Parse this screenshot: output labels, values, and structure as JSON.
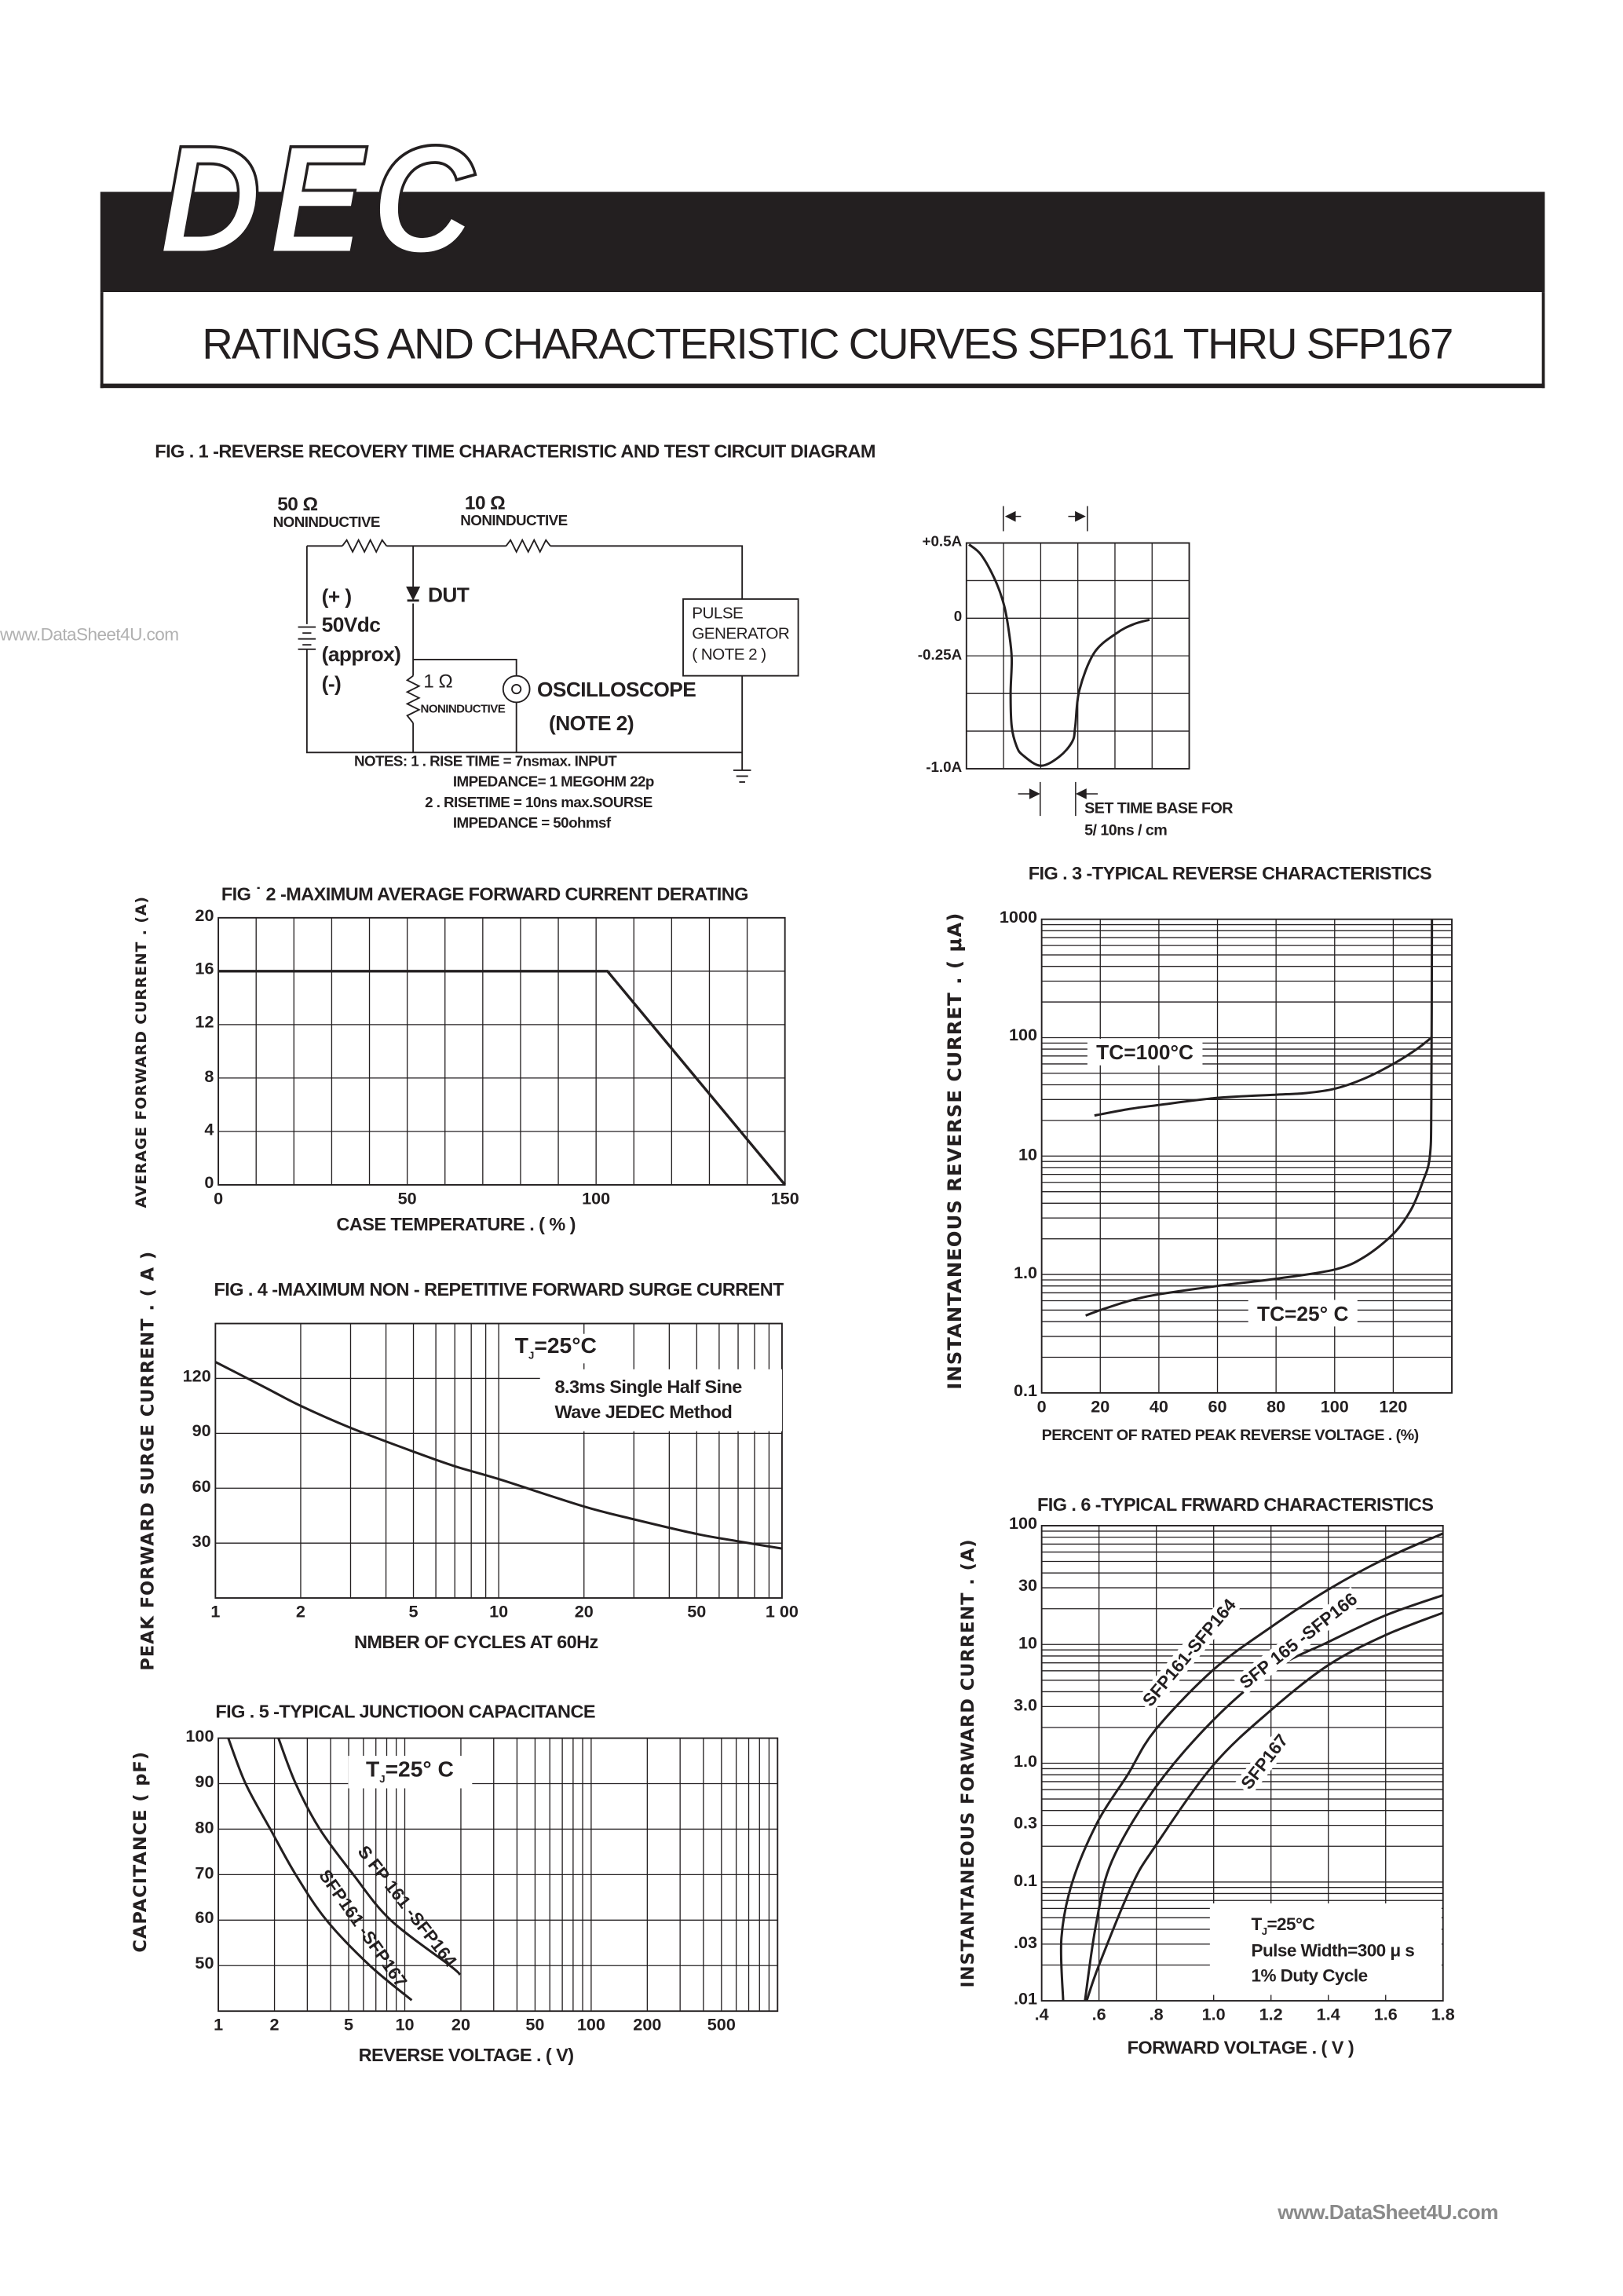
{
  "header": {
    "logo": "DEC",
    "title": "RATINGS AND CHARACTERISTIC CURVES SFP161 THRU SFP167"
  },
  "watermark": {
    "left": "www.DataSheet4U.com",
    "footer": "www.DataSheet4U.com"
  },
  "colors": {
    "ink": "#231f20",
    "background": "#ffffff",
    "watermark": "#a0a0a0"
  },
  "circuit": {
    "r1_value": "50 Ω",
    "r1_type": "NONINDUCTIVE",
    "r2_value": "10  Ω",
    "r2_type": "NONINDUCTIVE",
    "dut": "DUT",
    "supply": [
      "(+ )",
      "50Vdc",
      "(approx)",
      "(-)"
    ],
    "r3_value": "1 Ω",
    "r3_type": "NONINDUCTIVE",
    "scope": "OSCILLOSCOPE",
    "scope_note": "(NOTE  2)",
    "pulse_gen": [
      "PULSE",
      "GENERATOR",
      "( NOTE 2 )"
    ],
    "notes": [
      "NOTES: 1 . RISE  TIME  = 7nsmax. INPUT",
      "IMPEDANCE=  1 MEGOHM  22p",
      "2 .  RISETIME = 10ns max.SOURSE",
      "IMPEDANCE  = 50ohmsf"
    ]
  },
  "chart_data": [
    {
      "type": "line",
      "title": "FIG . 1 -REVERSE   RECOVERY   TIME CHARACTERISTIC    AND  TEST CIRCUIT   DIAGRAM",
      "xlabel": "",
      "ylabel": "",
      "xlim": [
        0,
        6
      ],
      "ylim": [
        -1.0,
        0.5
      ],
      "xscale": "linear",
      "yscale": "linear",
      "grid": true,
      "xticks": [],
      "yticks": [
        {
          "v": 0.5,
          "label": "+0.5A"
        },
        {
          "v": 0,
          "label": "0"
        },
        {
          "v": -0.25,
          "label": "-0.25A"
        },
        {
          "v": -1.0,
          "label": "-1.0A"
        }
      ],
      "annotations": [
        "SET   TIME   BASE FOR",
        "5/ 10ns  /  cm"
      ],
      "series": [
        {
          "points": [
            [
              0.07,
              0.49
            ],
            [
              0.4,
              0.42
            ],
            [
              0.78,
              0.25
            ],
            [
              1.02,
              0.08
            ],
            [
              1.15,
              -0.1
            ],
            [
              1.22,
              -0.27
            ],
            [
              1.19,
              -0.5
            ],
            [
              1.22,
              -0.72
            ],
            [
              1.35,
              -0.85
            ],
            [
              1.52,
              -0.91
            ],
            [
              2.0,
              -0.98
            ],
            [
              2.5,
              -0.92
            ],
            [
              2.85,
              -0.82
            ],
            [
              2.93,
              -0.72
            ],
            [
              3.04,
              -0.48
            ],
            [
              3.44,
              -0.23
            ],
            [
              4.04,
              -0.1
            ],
            [
              4.5,
              -0.04
            ],
            [
              4.93,
              -0.01
            ]
          ]
        }
      ]
    },
    {
      "type": "line",
      "title": "FIG ˙ 2 -MAXIMUM  AVERAGE   FORWARD CURRENT DERATING",
      "xlabel": "CASE   TEMPERATURE  . ( %  )",
      "ylabel": "AVERAGE FORWARD CURRENT . (A)",
      "xlim": [
        0,
        150
      ],
      "ylim": [
        0,
        20
      ],
      "xscale": "linear",
      "yscale": "linear",
      "grid": true,
      "xticks": [
        {
          "v": 0,
          "label": "0"
        },
        {
          "v": 50,
          "label": "50"
        },
        {
          "v": 100,
          "label": "100"
        },
        {
          "v": 150,
          "label": "150"
        }
      ],
      "yticks": [
        {
          "v": 0,
          "label": "0"
        },
        {
          "v": 4,
          "label": "4"
        },
        {
          "v": 8,
          "label": "8"
        },
        {
          "v": 12,
          "label": "12"
        },
        {
          "v": 16,
          "label": "16"
        },
        {
          "v": 20,
          "label": "20"
        }
      ],
      "series": [
        {
          "points": [
            [
              0,
              16
            ],
            [
              103,
              16
            ],
            [
              150,
              0
            ]
          ]
        }
      ]
    },
    {
      "type": "line",
      "title": "FIG  . 3 -TYPICAL   REVERSE   CHARACTERISTICS",
      "xlabel": "PERCENT   OF  RATED PEAK  REVERSE  VOLTAGE . (%)",
      "ylabel": "INSTANTANEOUS  REVERSE  CURRET . ( μA)",
      "xlim": [
        0,
        140
      ],
      "ylim": [
        0.1,
        1000
      ],
      "xscale": "linear",
      "yscale": "log",
      "grid": true,
      "xticks": [
        {
          "v": 0,
          "label": "0"
        },
        {
          "v": 20,
          "label": "20"
        },
        {
          "v": 40,
          "label": "40"
        },
        {
          "v": 60,
          "label": "60"
        },
        {
          "v": 80,
          "label": "80"
        },
        {
          "v": 100,
          "label": "100"
        },
        {
          "v": 120,
          "label": "120"
        }
      ],
      "yticks": [
        {
          "v": 0.1,
          "label": "0.1"
        },
        {
          "v": 1,
          "label": "1.0"
        },
        {
          "v": 10,
          "label": "10"
        },
        {
          "v": 100,
          "label": "100"
        },
        {
          "v": 1000,
          "label": "1000"
        }
      ],
      "series": [
        {
          "name": "TC=100°C",
          "points": [
            [
              18,
              22
            ],
            [
              30,
              25
            ],
            [
              40,
              27
            ],
            [
              60,
              31
            ],
            [
              80,
              33
            ],
            [
              90,
              34
            ],
            [
              100,
              37
            ],
            [
              110,
              45
            ],
            [
              120,
              60
            ],
            [
              128,
              80
            ],
            [
              133,
              100
            ]
          ]
        },
        {
          "name": "TC=25° C",
          "points": [
            [
              15,
              0.45
            ],
            [
              20,
              0.5
            ],
            [
              30,
              0.6
            ],
            [
              40,
              0.68
            ],
            [
              60,
              0.8
            ],
            [
              80,
              0.92
            ],
            [
              100,
              1.1
            ],
            [
              110,
              1.4
            ],
            [
              120,
              2.2
            ],
            [
              126,
              3.5
            ],
            [
              130,
              6
            ],
            [
              132.5,
              10
            ],
            [
              133,
              30
            ],
            [
              133.2,
              1000
            ]
          ]
        }
      ]
    },
    {
      "type": "line",
      "title": "FIG . 4 -MAXIMUM NON - REPETITIVE FORWARD SURGE CURRENT",
      "xlabel": "NMBER   OF   CYCLES AT  60Hz",
      "ylabel": "PEAK  FORWARD  SURGE  CURRENT . ( A )",
      "xlim": [
        1,
        100
      ],
      "ylim": [
        0,
        150
      ],
      "xscale": "log",
      "yscale": "linear",
      "grid": true,
      "xticks": [
        {
          "v": 1,
          "label": "1"
        },
        {
          "v": 2,
          "label": "2"
        },
        {
          "v": 5,
          "label": "5"
        },
        {
          "v": 10,
          "label": "10"
        },
        {
          "v": 20,
          "label": "20"
        },
        {
          "v": 50,
          "label": "50"
        },
        {
          "v": 100,
          "label": "1 00"
        }
      ],
      "yticks": [
        {
          "v": 30,
          "label": "30"
        },
        {
          "v": 60,
          "label": "60"
        },
        {
          "v": 90,
          "label": "90"
        },
        {
          "v": 120,
          "label": "120"
        }
      ],
      "annotations": [
        {
          "t": "T",
          "sub": "J",
          "rest": "=25°C"
        },
        "8.3ms  Single  Half  Sine",
        "Wave  JEDEC   Method"
      ],
      "series": [
        {
          "points": [
            [
              1,
              129
            ],
            [
              1.5,
              115
            ],
            [
              2,
              105
            ],
            [
              3,
              93
            ],
            [
              5,
              80
            ],
            [
              7,
              72
            ],
            [
              10,
              65
            ],
            [
              20,
              50
            ],
            [
              30,
              43
            ],
            [
              50,
              35
            ],
            [
              70,
              31
            ],
            [
              100,
              27
            ]
          ]
        }
      ]
    },
    {
      "type": "line",
      "title": "FIG  . 5 -TYPICAL    JUNCTIOON    CAPACITANCE",
      "xlabel": "REVERSE    VOLTAGE  . ( V)",
      "ylabel": "CAPACITANCE ( pF)",
      "xlim": [
        1,
        1000
      ],
      "ylim": [
        40,
        100
      ],
      "xscale": "log",
      "yscale": "linear",
      "grid": true,
      "xticks": [
        {
          "v": 1,
          "label": "1"
        },
        {
          "v": 2,
          "label": "2"
        },
        {
          "v": 5,
          "label": "5"
        },
        {
          "v": 10,
          "label": "10"
        },
        {
          "v": 20,
          "label": "20"
        },
        {
          "v": 50,
          "label": "50"
        },
        {
          "v": 100,
          "label": "100"
        },
        {
          "v": 200,
          "label": "200"
        },
        {
          "v": 500,
          "label": "500"
        }
      ],
      "yticks": [
        {
          "v": 50,
          "label": "50"
        },
        {
          "v": 60,
          "label": "60"
        },
        {
          "v": 70,
          "label": "70"
        },
        {
          "v": 80,
          "label": "80"
        },
        {
          "v": 90,
          "label": "90"
        },
        {
          "v": 100,
          "label": "100"
        }
      ],
      "annotations": [
        {
          "t": "T",
          "sub": "J",
          "rest": "=25° C"
        }
      ],
      "series": [
        {
          "name": "S FP 161 -SFP164",
          "points": [
            [
              2.1,
              100
            ],
            [
              2.6,
              90
            ],
            [
              3.5,
              80
            ],
            [
              5.3,
              70
            ],
            [
              8.4,
              60
            ],
            [
              17.5,
              50
            ],
            [
              19.8,
              48
            ]
          ]
        },
        {
          "name": "SFP161 -SFP167",
          "points": [
            [
              1.13,
              100
            ],
            [
              1.4,
              90
            ],
            [
              1.9,
              80
            ],
            [
              2.6,
              70
            ],
            [
              3.8,
              60
            ],
            [
              6.5,
              50
            ],
            [
              10.9,
              42.4
            ]
          ]
        }
      ]
    },
    {
      "type": "line",
      "title": "FIG  . 6 -TYPICAL    FRWARD  CHARACTERISTICS",
      "xlabel": "FORWARD    VOLTAGE  . ( V )",
      "ylabel": "INSTANTANEOUS FORWARD CURRENT . (A)",
      "xlim": [
        0.4,
        1.8
      ],
      "ylim": [
        0.01,
        100
      ],
      "xscale": "linear",
      "yscale": "log",
      "grid": true,
      "xticks": [
        {
          "v": 0.4,
          "label": ".4"
        },
        {
          "v": 0.6,
          "label": ".6"
        },
        {
          "v": 0.8,
          "label": ".8"
        },
        {
          "v": 1.0,
          "label": "1.0"
        },
        {
          "v": 1.2,
          "label": "1.2"
        },
        {
          "v": 1.4,
          "label": "1.4"
        },
        {
          "v": 1.6,
          "label": "1.6"
        },
        {
          "v": 1.8,
          "label": "1.8"
        }
      ],
      "yticks": [
        {
          "v": 0.01,
          "label": ".01"
        },
        {
          "v": 0.03,
          "label": ".03"
        },
        {
          "v": 0.1,
          "label": "0.1"
        },
        {
          "v": 0.3,
          "label": "0.3"
        },
        {
          "v": 1,
          "label": "1.0"
        },
        {
          "v": 3,
          "label": "3.0"
        },
        {
          "v": 10,
          "label": "10"
        },
        {
          "v": 30,
          "label": "30"
        },
        {
          "v": 100,
          "label": "100"
        }
      ],
      "annotations": [
        {
          "t": "T",
          "sub": "J",
          "rest": "=25°C"
        },
        "Pulse  Width=300  μ s",
        "1%  Duty   Cycle"
      ],
      "series": [
        {
          "name": "SFP161-SFP164",
          "points": [
            [
              0.475,
              0.01
            ],
            [
              0.469,
              0.034
            ],
            [
              0.507,
              0.1
            ],
            [
              0.595,
              0.32
            ],
            [
              0.7,
              0.8
            ],
            [
              0.796,
              1.9
            ],
            [
              0.998,
              6.1
            ],
            [
              1.2,
              14
            ],
            [
              1.4,
              29
            ],
            [
              1.6,
              53
            ],
            [
              1.8,
              86
            ]
          ]
        },
        {
          "name": "SFP 165 -SFP166",
          "points": [
            [
              0.551,
              0.01
            ],
            [
              0.589,
              0.043
            ],
            [
              0.645,
              0.15
            ],
            [
              0.796,
              0.62
            ],
            [
              0.998,
              2.3
            ],
            [
              1.2,
              6
            ],
            [
              1.4,
              10.5
            ],
            [
              1.6,
              17.6
            ],
            [
              1.8,
              26
            ]
          ]
        },
        {
          "name": "SFP167",
          "points": [
            [
              0.557,
              0.01
            ],
            [
              0.6,
              0.02
            ],
            [
              0.714,
              0.093
            ],
            [
              0.796,
              0.2
            ],
            [
              0.998,
              0.96
            ],
            [
              1.2,
              2.8
            ],
            [
              1.4,
              6.7
            ],
            [
              1.6,
              12
            ],
            [
              1.8,
              18.5
            ]
          ]
        }
      ]
    }
  ]
}
